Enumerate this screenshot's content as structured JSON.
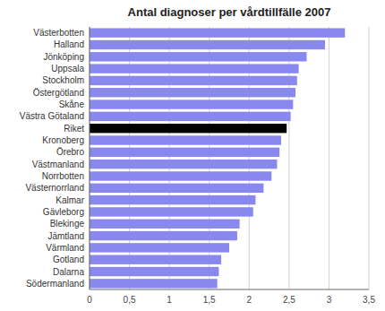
{
  "chart_data": {
    "type": "bar",
    "orientation": "horizontal",
    "title": "Antal diagnoser per vårdtillfälle 2007",
    "categories": [
      "Västerbotten",
      "Halland",
      "Jönköping",
      "Uppsala",
      "Stockholm",
      "Östergötland",
      "Skåne",
      "Västra Götaland",
      "Riket",
      "Kronoberg",
      "Örebro",
      "Västmanland",
      "Norrbotten",
      "Västernorrland",
      "Kalmar",
      "Gävleborg",
      "Blekinge",
      "Jämtland",
      "Värmland",
      "Gotland",
      "Dalarna",
      "Södermanland"
    ],
    "values": [
      3.2,
      2.95,
      2.72,
      2.62,
      2.6,
      2.58,
      2.55,
      2.52,
      2.47,
      2.4,
      2.38,
      2.35,
      2.28,
      2.18,
      2.08,
      2.05,
      1.88,
      1.85,
      1.75,
      1.65,
      1.62,
      1.6
    ],
    "colors": [
      "#8888ee",
      "#8888ee",
      "#8888ee",
      "#8888ee",
      "#8888ee",
      "#8888ee",
      "#8888ee",
      "#8888ee",
      "#000000",
      "#8888ee",
      "#8888ee",
      "#8888ee",
      "#8888ee",
      "#8888ee",
      "#8888ee",
      "#8888ee",
      "#8888ee",
      "#8888ee",
      "#8888ee",
      "#8888ee",
      "#8888ee",
      "#8888ee"
    ],
    "xlim": [
      0,
      3.5
    ],
    "xticks": [
      0,
      {
        "value": 0.5,
        "label": "0,5"
      },
      1,
      {
        "value": 1.5,
        "label": "1,5"
      },
      2,
      {
        "value": 2.5,
        "label": "2,5"
      },
      3,
      {
        "value": 3.5,
        "label": "3,5"
      }
    ],
    "grid": true
  }
}
